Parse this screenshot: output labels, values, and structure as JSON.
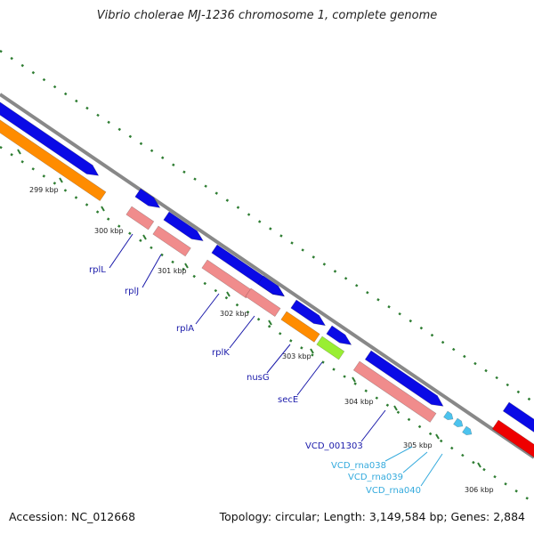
{
  "title": "Vibrio cholerae MJ-1236 chromosome 1, complete genome",
  "footer": {
    "accession": "Accession: NC_012668",
    "summary": "Topology: circular; Length: 3,149,584 bp; Genes: 2,884"
  },
  "colors": {
    "backbone": "#888888",
    "tick": "#2e7d32",
    "cds_forward": "#0a0ae6",
    "cds_reverse": "#f08c8c",
    "orf_alt": "#ff8c00",
    "sec": "#99ee33",
    "rna": "#4cc3ee",
    "red_feature": "#ee0000",
    "gene_label": "#1a1aaa",
    "rna_label": "#33aadd"
  },
  "axis_labels": [
    "299 kbp",
    "300 kbp",
    "301 kbp",
    "302 kbp",
    "303 kbp",
    "304 kbp",
    "305 kbp",
    "306 kbp"
  ],
  "gene_labels": [
    {
      "text": "rplL",
      "kind": "gene"
    },
    {
      "text": "rplJ",
      "kind": "gene"
    },
    {
      "text": "rplA",
      "kind": "gene"
    },
    {
      "text": "rplK",
      "kind": "gene"
    },
    {
      "text": "nusG",
      "kind": "gene"
    },
    {
      "text": "secE",
      "kind": "gene"
    },
    {
      "text": "VCD_001303",
      "kind": "gene"
    },
    {
      "text": "VCD_rna038",
      "kind": "rna"
    },
    {
      "text": "VCD_rna039",
      "kind": "rna"
    },
    {
      "text": "VCD_rna040",
      "kind": "rna"
    }
  ]
}
